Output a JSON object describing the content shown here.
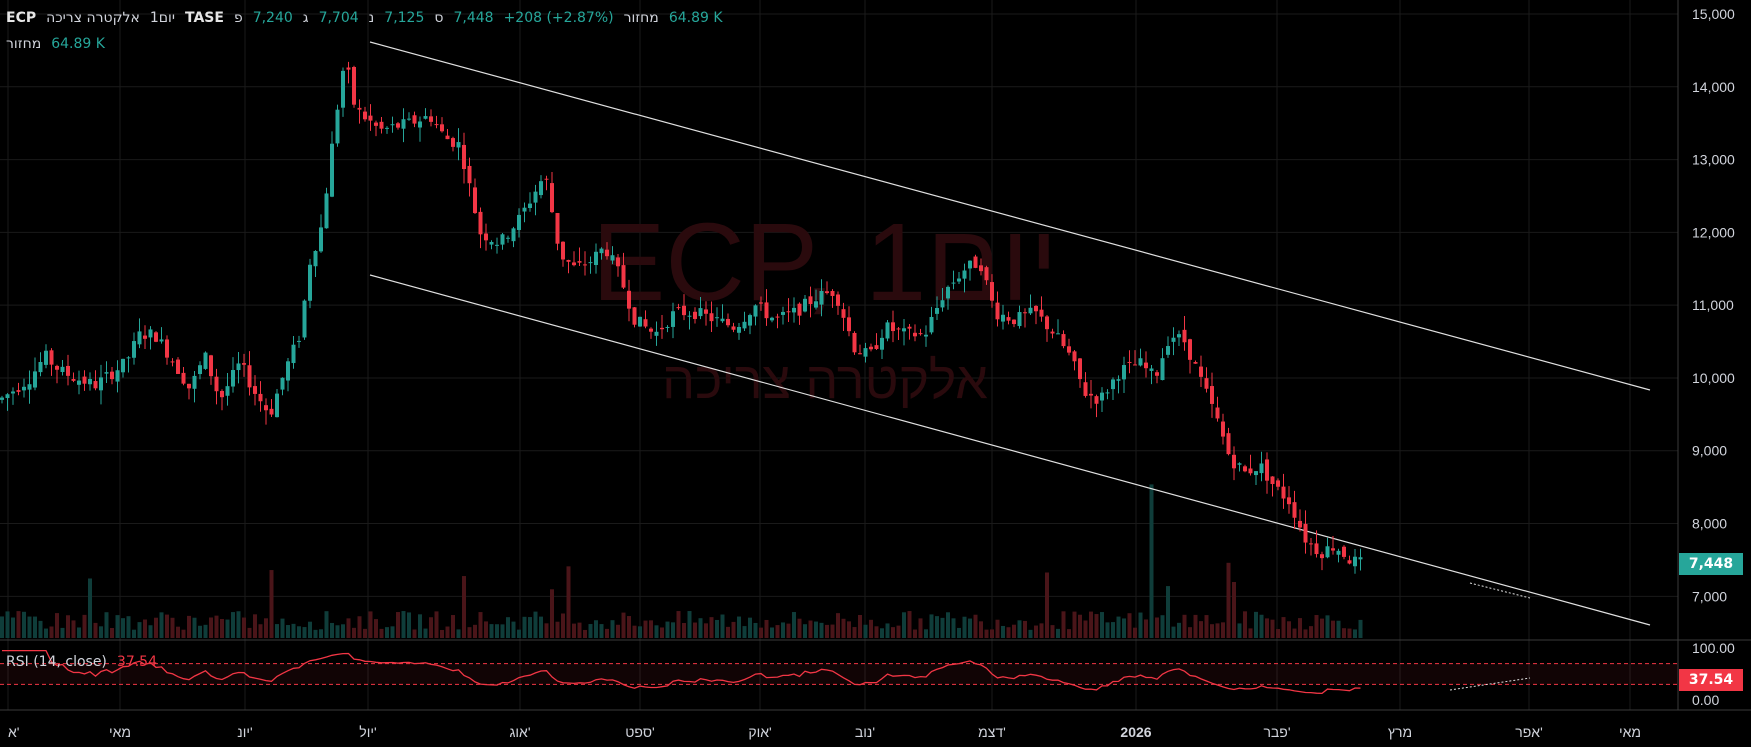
{
  "header": {
    "symbol": "ECP",
    "exchange": "TASE",
    "name": "אלקטרה צריכה",
    "interval": "1יום",
    "open_label": "פ",
    "open": "7,240",
    "high_label": "ג",
    "high": "7,704",
    "low_label": "נ",
    "low": "7,125",
    "close_label": "ס",
    "close": "7,448",
    "change": "+208 (+2.87%)",
    "volume_label": "מחזור",
    "volume_value": "64.89 K"
  },
  "volume_line": {
    "label": "מחזור",
    "value": "64.89 K"
  },
  "watermark": {
    "symbol_text": "ECP, 1יום",
    "name_text": "אלקטרה צריכה"
  },
  "price_tag": "7,448",
  "rsi": {
    "label": "RSI (14, close)",
    "value": "37.54",
    "tag": "37.54",
    "scale_top": "100.00",
    "scale_bottom": "0.00",
    "upper_band": 70,
    "lower_band": 30
  },
  "colors": {
    "up": "#26a69a",
    "down": "#f23645",
    "background": "#000000",
    "grid": "#1a1a1a",
    "text": "#d1d4dc"
  },
  "chart_data": {
    "type": "candlestick",
    "y_axis_ticks": [
      "15,000",
      "14,000",
      "13,000",
      "12,000",
      "11,000",
      "10,000",
      "9,000",
      "8,000",
      "7,000"
    ],
    "ylim": [
      6400,
      15000
    ],
    "x_axis_ticks": [
      "א'",
      "מאי",
      "יונ'",
      "יול'",
      "אוג'",
      "ספט'",
      "אוק'",
      "נוב'",
      "דצמ'",
      "2026",
      "פבר'",
      "מרץ",
      "אפר'",
      "מאי"
    ],
    "last_close": 7448,
    "trend_channel": {
      "upper": [
        {
          "date_index": 0,
          "price": 14650
        },
        {
          "date_index": 1,
          "price": 9880
        }
      ],
      "lower": [
        {
          "date_index": 0,
          "price": 11430
        },
        {
          "date_index": 1,
          "price": 6580
        }
      ]
    },
    "price_path": [
      [
        0,
        9700
      ],
      [
        30,
        10000
      ],
      [
        45,
        10300
      ],
      [
        60,
        10100
      ],
      [
        75,
        10000
      ],
      [
        95,
        9900
      ],
      [
        110,
        10050
      ],
      [
        125,
        10200
      ],
      [
        140,
        10600
      ],
      [
        155,
        10600
      ],
      [
        170,
        10300
      ],
      [
        190,
        9850
      ],
      [
        205,
        10300
      ],
      [
        220,
        9700
      ],
      [
        240,
        10200
      ],
      [
        255,
        9800
      ],
      [
        270,
        9500
      ],
      [
        285,
        10100
      ],
      [
        300,
        10600
      ],
      [
        310,
        11600
      ],
      [
        322,
        12100
      ],
      [
        335,
        13500
      ],
      [
        345,
        14400
      ],
      [
        355,
        13700
      ],
      [
        380,
        13400
      ],
      [
        410,
        13500
      ],
      [
        430,
        13600
      ],
      [
        445,
        13300
      ],
      [
        460,
        13200
      ],
      [
        470,
        12600
      ],
      [
        480,
        12000
      ],
      [
        500,
        11850
      ],
      [
        520,
        12200
      ],
      [
        545,
        12800
      ],
      [
        560,
        11700
      ],
      [
        575,
        11500
      ],
      [
        590,
        11600
      ],
      [
        605,
        11800
      ],
      [
        620,
        11400
      ],
      [
        635,
        10800
      ],
      [
        655,
        10600
      ],
      [
        675,
        10900
      ],
      [
        695,
        10900
      ],
      [
        715,
        10800
      ],
      [
        735,
        10700
      ],
      [
        755,
        11000
      ],
      [
        775,
        10800
      ],
      [
        795,
        10900
      ],
      [
        815,
        11100
      ],
      [
        835,
        11200
      ],
      [
        855,
        10400
      ],
      [
        870,
        10300
      ],
      [
        885,
        10700
      ],
      [
        905,
        10600
      ],
      [
        925,
        10600
      ],
      [
        945,
        11200
      ],
      [
        965,
        11500
      ],
      [
        980,
        11600
      ],
      [
        995,
        10900
      ],
      [
        1015,
        10800
      ],
      [
        1035,
        10900
      ],
      [
        1055,
        10600
      ],
      [
        1070,
        10300
      ],
      [
        1085,
        9800
      ],
      [
        1100,
        9700
      ],
      [
        1120,
        10100
      ],
      [
        1140,
        10200
      ],
      [
        1155,
        10000
      ],
      [
        1170,
        10600
      ],
      [
        1185,
        10500
      ],
      [
        1200,
        10000
      ],
      [
        1215,
        9500
      ],
      [
        1230,
        8900
      ],
      [
        1245,
        8700
      ],
      [
        1260,
        8800
      ],
      [
        1275,
        8500
      ],
      [
        1290,
        8300
      ],
      [
        1305,
        7800
      ],
      [
        1320,
        7600
      ],
      [
        1335,
        7700
      ],
      [
        1350,
        7500
      ],
      [
        1363,
        7448
      ]
    ],
    "volume_spikes": [
      [
        1152,
        0.96
      ],
      [
        1160,
        0.35
      ],
      [
        1230,
        0.47
      ],
      [
        1235,
        0.35
      ]
    ]
  }
}
